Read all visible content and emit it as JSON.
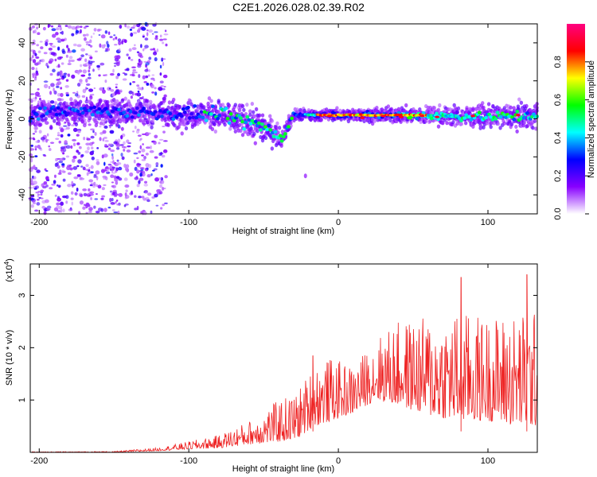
{
  "title": "C2E1.2026.028.02.39.R02",
  "chart_data": [
    {
      "type": "heatmap",
      "title": "C2E1.2026.028.02.39.R02",
      "xlabel": "Height of straight line (km)",
      "ylabel": "Frequency (Hz)",
      "xlim": [
        -206,
        133
      ],
      "ylim": [
        -50,
        50
      ],
      "xticks": [
        -200,
        -100,
        0,
        100
      ],
      "yticks": [
        -40,
        -20,
        0,
        20,
        40
      ],
      "colorbar": {
        "label": "Normalized spectral amplitude",
        "range": [
          0,
          1
        ],
        "ticks": [
          "0.0",
          "0.2",
          "0.4",
          "0.6",
          "0.8"
        ],
        "colors": [
          "#ffffff",
          "#8800ff",
          "#0000ff",
          "#00ffff",
          "#00ff00",
          "#ffff00",
          "#ff0000",
          "#ff0080"
        ]
      },
      "ridge": [
        {
          "x": -200,
          "center": 4,
          "width": 12
        },
        {
          "x": -150,
          "center": 4,
          "width": 12
        },
        {
          "x": -120,
          "center": 3,
          "width": 12
        },
        {
          "x": -80,
          "center": 2,
          "width": 14
        },
        {
          "x": -50,
          "center": -4,
          "width": 16
        },
        {
          "x": -38,
          "center": -10,
          "width": 8
        },
        {
          "x": -30,
          "center": 2,
          "width": 6
        },
        {
          "x": 0,
          "center": 2,
          "width": 5
        },
        {
          "x": 50,
          "center": 2,
          "width": 8
        },
        {
          "x": 100,
          "center": 1,
          "width": 10
        },
        {
          "x": 133,
          "center": 2,
          "width": 12
        }
      ]
    },
    {
      "type": "line",
      "xlabel": "Height of straight line (km)",
      "ylabel": "SNR (10 * v/v)",
      "yscale_label": "(x10",
      "yscale_exp": "4",
      "xlim": [
        -206,
        133
      ],
      "ylim": [
        0,
        3.6
      ],
      "xticks": [
        -200,
        -100,
        0,
        100
      ],
      "yticks": [
        1,
        2,
        3
      ],
      "color": "#ee2222",
      "envelope": [
        {
          "x": -206,
          "base": 0.0,
          "amp": 0.01
        },
        {
          "x": -150,
          "base": 0.0,
          "amp": 0.02
        },
        {
          "x": -120,
          "base": 0.03,
          "amp": 0.06
        },
        {
          "x": -100,
          "base": 0.06,
          "amp": 0.15
        },
        {
          "x": -80,
          "base": 0.08,
          "amp": 0.25
        },
        {
          "x": -60,
          "base": 0.15,
          "amp": 0.45
        },
        {
          "x": -40,
          "base": 0.2,
          "amp": 0.8
        },
        {
          "x": -28,
          "base": 0.25,
          "amp": 0.9
        },
        {
          "x": -16,
          "base": 0.5,
          "amp": 1.2
        },
        {
          "x": -5,
          "base": 0.6,
          "amp": 1.2
        },
        {
          "x": 10,
          "base": 0.75,
          "amp": 0.9
        },
        {
          "x": 25,
          "base": 1.0,
          "amp": 1.2
        },
        {
          "x": 40,
          "base": 0.9,
          "amp": 1.6
        },
        {
          "x": 60,
          "base": 0.7,
          "amp": 1.9
        },
        {
          "x": 80,
          "base": 0.6,
          "amp": 2.1
        },
        {
          "x": 100,
          "base": 0.6,
          "amp": 2.0
        },
        {
          "x": 120,
          "base": 0.5,
          "amp": 2.2
        },
        {
          "x": 133,
          "base": 0.5,
          "amp": 2.2
        }
      ],
      "peaks": [
        {
          "x": -17,
          "y": 1.85
        },
        {
          "x": 82,
          "y": 3.35
        },
        {
          "x": 126,
          "y": 3.4
        }
      ]
    }
  ]
}
